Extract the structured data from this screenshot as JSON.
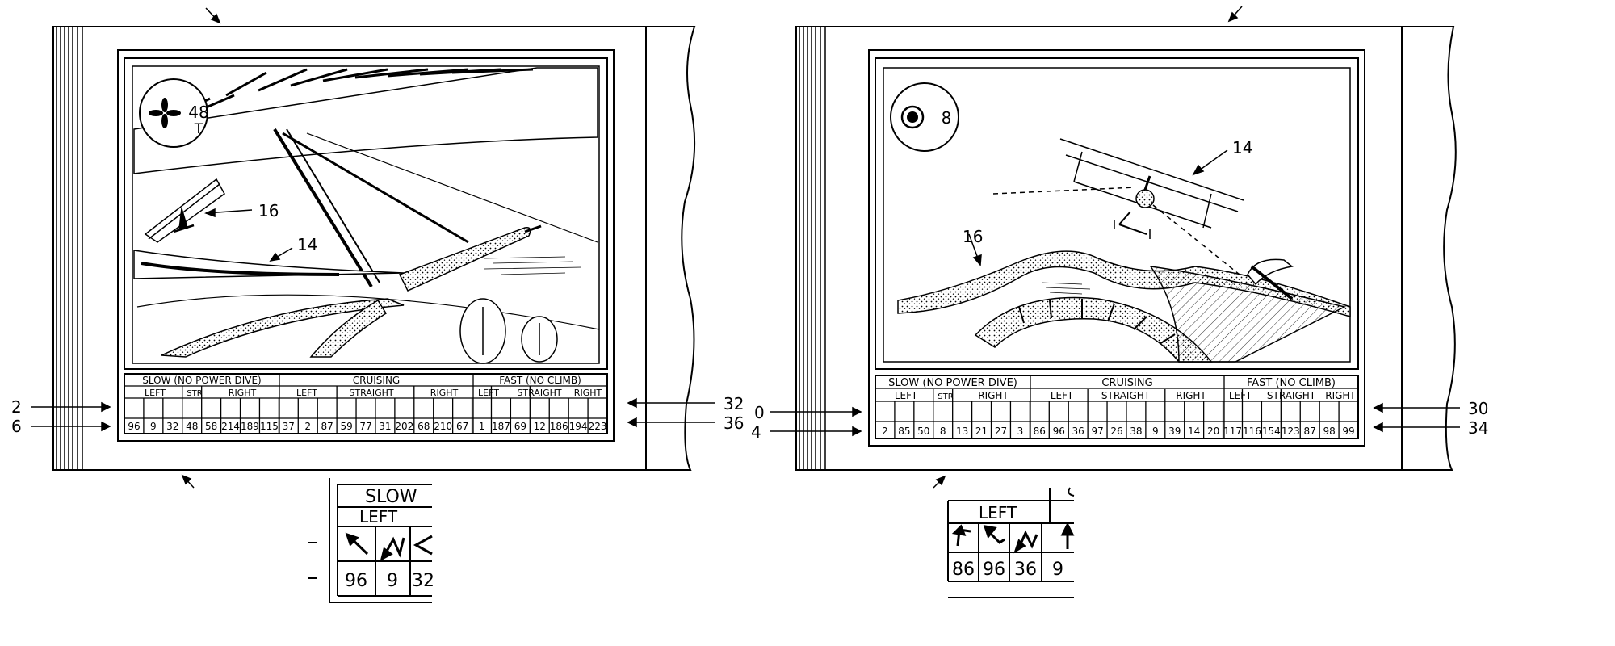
{
  "left_panel": {
    "gauge": {
      "icon": "propeller-icon",
      "number": "48",
      "letter": "T"
    },
    "ref_plane": "16",
    "ref_wing": "14",
    "table": {
      "group_headers": [
        "SLOW (NO POWER DIVE)",
        "CRUISING",
        "FAST (NO CLIMB)"
      ],
      "sub_headers": [
        "LEFT",
        "STR",
        "RIGHT",
        "LEFT",
        "STRAIGHT",
        "RIGHT",
        "LEFT",
        "STRAIGHT",
        "RIGHT"
      ],
      "numbers": [
        "96",
        "9",
        "32",
        "48",
        "58",
        "214",
        "189",
        "115",
        "37",
        "2",
        "87",
        "59",
        "77",
        "31",
        "202",
        "68",
        "210",
        "67",
        "1",
        "187",
        "69",
        "12",
        "186",
        "194",
        "223"
      ]
    },
    "left_refs": [
      "2",
      "6"
    ],
    "right_refs": [
      "32",
      "36"
    ],
    "detail": {
      "header": "SLOW",
      "sub": "LEFT",
      "numbers": [
        "96",
        "9",
        "32"
      ]
    }
  },
  "right_panel": {
    "gauge": {
      "icon": "target-icon",
      "number": "8"
    },
    "ref_plane": "14",
    "ref_ground": "16",
    "table": {
      "group_headers": [
        "SLOW (NO POWER DIVE)",
        "CRUISING",
        "FAST (NO CLIMB)"
      ],
      "sub_headers": [
        "LEFT",
        "STR",
        "RIGHT",
        "LEFT",
        "STRAIGHT",
        "RIGHT",
        "LEFT",
        "STRAIGHT",
        "RIGHT"
      ],
      "numbers": [
        "2",
        "85",
        "50",
        "8",
        "13",
        "21",
        "27",
        "3",
        "86",
        "96",
        "36",
        "97",
        "26",
        "38",
        "9",
        "39",
        "14",
        "20",
        "117",
        "116",
        "154",
        "123",
        "87",
        "98",
        "99"
      ]
    },
    "left_refs": [
      "0",
      "4"
    ],
    "right_refs": [
      "30",
      "34"
    ],
    "detail": {
      "sub": "LEFT",
      "numbers": [
        "86",
        "96",
        "36",
        "9"
      ]
    }
  }
}
